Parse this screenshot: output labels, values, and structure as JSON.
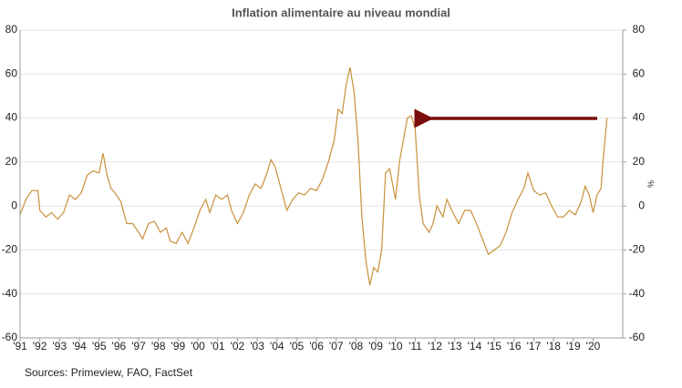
{
  "chart_data": {
    "type": "line",
    "title": "Inflation alimentaire au niveau mondial",
    "source": "Sources: Primeview, FAO, FactSet",
    "y2label": "%",
    "color": "#c8913a",
    "x": [
      1991.0,
      1991.3,
      1991.6,
      1991.9,
      1992.0,
      1992.3,
      1992.6,
      1992.9,
      1993.2,
      1993.5,
      1993.8,
      1994.1,
      1994.4,
      1994.7,
      1995.0,
      1995.2,
      1995.4,
      1995.6,
      1995.8,
      1996.1,
      1996.4,
      1996.7,
      1997.0,
      1997.2,
      1997.5,
      1997.8,
      1998.1,
      1998.4,
      1998.6,
      1998.9,
      1999.2,
      1999.5,
      1999.8,
      2000.1,
      2000.4,
      2000.6,
      2000.9,
      2001.2,
      2001.5,
      2001.7,
      2002.0,
      2002.3,
      2002.6,
      2002.9,
      2003.2,
      2003.5,
      2003.7,
      2003.9,
      2004.2,
      2004.5,
      2004.8,
      2005.1,
      2005.4,
      2005.7,
      2006.0,
      2006.3,
      2006.6,
      2006.9,
      2007.1,
      2007.3,
      2007.5,
      2007.7,
      2007.9,
      2008.1,
      2008.3,
      2008.5,
      2008.7,
      2008.9,
      2009.1,
      2009.3,
      2009.5,
      2009.7,
      2010.0,
      2010.2,
      2010.4,
      2010.6,
      2010.8,
      2011.0,
      2011.2,
      2011.4,
      2011.7,
      2011.9,
      2012.1,
      2012.4,
      2012.6,
      2012.9,
      2013.2,
      2013.5,
      2013.8,
      2014.1,
      2014.4,
      2014.7,
      2015.0,
      2015.3,
      2015.6,
      2015.9,
      2016.2,
      2016.5,
      2016.7,
      2017.0,
      2017.3,
      2017.6,
      2017.9,
      2018.2,
      2018.5,
      2018.8,
      2019.1,
      2019.4,
      2019.6,
      2019.8,
      2020.0,
      2020.2,
      2020.4,
      2020.5,
      2020.6,
      2020.7
    ],
    "values": [
      -4,
      3,
      7,
      7,
      -2,
      -5,
      -3,
      -6,
      -3,
      5,
      3,
      6,
      14,
      16,
      15,
      24,
      14,
      8,
      6,
      2,
      -8,
      -8,
      -12,
      -15,
      -8,
      -7,
      -12,
      -10,
      -16,
      -17,
      -12,
      -17,
      -10,
      -2,
      3,
      -3,
      5,
      3,
      5,
      -2,
      -8,
      -3,
      5,
      10,
      8,
      15,
      21,
      18,
      8,
      -2,
      3,
      6,
      5,
      8,
      7,
      12,
      20,
      30,
      44,
      42,
      55,
      63,
      52,
      30,
      -5,
      -25,
      -36,
      -28,
      -30,
      -20,
      15,
      17,
      3,
      20,
      30,
      40,
      41,
      35,
      5,
      -8,
      -12,
      -8,
      0,
      -5,
      3,
      -3,
      -8,
      -2,
      -2,
      -8,
      -15,
      -22,
      -20,
      -18,
      -12,
      -3,
      3,
      8,
      15,
      7,
      5,
      6,
      0,
      -5,
      -5,
      -2,
      -4,
      2,
      9,
      5,
      -3,
      5,
      8,
      20,
      30,
      40
    ],
    "xlim": [
      1991,
      2021.5
    ],
    "xticks": [
      {
        "value": 1991,
        "label": "'91"
      },
      {
        "value": 1992,
        "label": "'92"
      },
      {
        "value": 1993,
        "label": "'93"
      },
      {
        "value": 1994,
        "label": "'94"
      },
      {
        "value": 1995,
        "label": "'95"
      },
      {
        "value": 1996,
        "label": "'96"
      },
      {
        "value": 1997,
        "label": "'97"
      },
      {
        "value": 1998,
        "label": "'98"
      },
      {
        "value": 1999,
        "label": "'99"
      },
      {
        "value": 2000,
        "label": "'00"
      },
      {
        "value": 2001,
        "label": "'01"
      },
      {
        "value": 2002,
        "label": "'02"
      },
      {
        "value": 2003,
        "label": "'03"
      },
      {
        "value": 2004,
        "label": "'04"
      },
      {
        "value": 2005,
        "label": "'05"
      },
      {
        "value": 2006,
        "label": "'06"
      },
      {
        "value": 2007,
        "label": "'07"
      },
      {
        "value": 2008,
        "label": "'08"
      },
      {
        "value": 2009,
        "label": "'09"
      },
      {
        "value": 2010,
        "label": "'10"
      },
      {
        "value": 2011,
        "label": "'11"
      },
      {
        "value": 2012,
        "label": "'12"
      },
      {
        "value": 2013,
        "label": "'13"
      },
      {
        "value": 2014,
        "label": "'14"
      },
      {
        "value": 2015,
        "label": "'15"
      },
      {
        "value": 2016,
        "label": "'16"
      },
      {
        "value": 2017,
        "label": "'17"
      },
      {
        "value": 2018,
        "label": "'18"
      },
      {
        "value": 2019,
        "label": "'19"
      },
      {
        "value": 2020,
        "label": "'20"
      }
    ],
    "ylim": [
      -60,
      80
    ],
    "yticks": [
      -60,
      -40,
      -20,
      0,
      20,
      40,
      60,
      80
    ],
    "y2lim": [
      -60,
      80
    ],
    "y2ticks": [
      -60,
      -40,
      -20,
      0,
      20,
      40,
      60,
      80
    ],
    "grid": true
  }
}
